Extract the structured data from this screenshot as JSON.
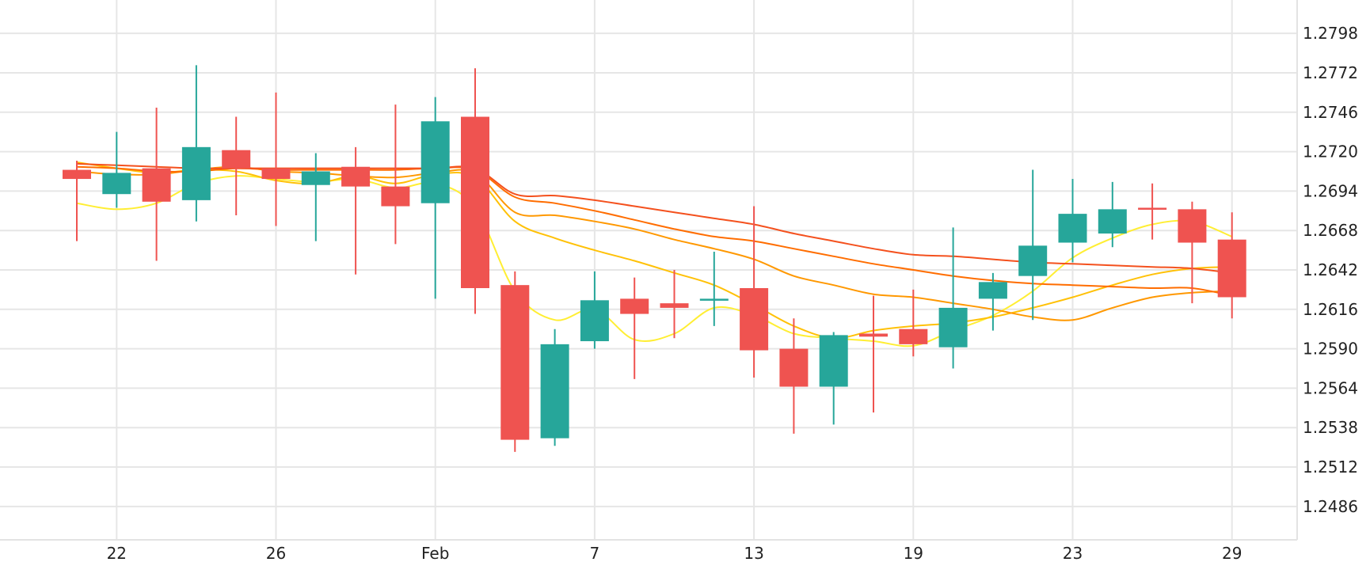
{
  "chart_data": {
    "type": "candlestick",
    "title": "",
    "xlabel": "",
    "ylabel": "",
    "ylim": [
      1.2464,
      1.282
    ],
    "y_ticks": [
      "1.2798",
      "1.2772",
      "1.2746",
      "1.2720",
      "1.2694",
      "1.2668",
      "1.2642",
      "1.2616",
      "1.2590",
      "1.2564",
      "1.2538",
      "1.2512",
      "1.2486"
    ],
    "x_ticks": [
      {
        "label": "22",
        "index": 1
      },
      {
        "label": "26",
        "index": 5
      },
      {
        "label": "Feb",
        "index": 9
      },
      {
        "label": "7",
        "index": 13
      },
      {
        "label": "13",
        "index": 17
      },
      {
        "label": "19",
        "index": 21
      },
      {
        "label": "23",
        "index": 25
      },
      {
        "label": "29",
        "index": 29
      }
    ],
    "grid": true,
    "colors": {
      "up": "#26a69a",
      "down": "#ef5350",
      "ma_yellow": "#ffee33",
      "ma_gold": "#ffc107",
      "ma_orange": "#ff9800",
      "ma_deep_orange": "#ff6d00",
      "ma_red": "#f4511e"
    },
    "candles": [
      {
        "o": 1.2708,
        "h": 1.2714,
        "l": 1.2661,
        "c": 1.2702
      },
      {
        "o": 1.2692,
        "h": 1.2733,
        "l": 1.2683,
        "c": 1.2706
      },
      {
        "o": 1.2709,
        "h": 1.2749,
        "l": 1.2648,
        "c": 1.2687
      },
      {
        "o": 1.2688,
        "h": 1.2777,
        "l": 1.2674,
        "c": 1.2723
      },
      {
        "o": 1.2721,
        "h": 1.2743,
        "l": 1.2678,
        "c": 1.2709
      },
      {
        "o": 1.2709,
        "h": 1.2759,
        "l": 1.2671,
        "c": 1.2702
      },
      {
        "o": 1.2698,
        "h": 1.2719,
        "l": 1.2661,
        "c": 1.2707
      },
      {
        "o": 1.271,
        "h": 1.2723,
        "l": 1.2639,
        "c": 1.2697
      },
      {
        "o": 1.2697,
        "h": 1.2751,
        "l": 1.2659,
        "c": 1.2684
      },
      {
        "o": 1.2686,
        "h": 1.2756,
        "l": 1.2623,
        "c": 1.274
      },
      {
        "o": 1.2743,
        "h": 1.2775,
        "l": 1.2613,
        "c": 1.263
      },
      {
        "o": 1.2632,
        "h": 1.2641,
        "l": 1.2522,
        "c": 1.253
      },
      {
        "o": 1.2531,
        "h": 1.2603,
        "l": 1.2526,
        "c": 1.2593
      },
      {
        "o": 1.2595,
        "h": 1.2641,
        "l": 1.259,
        "c": 1.2622
      },
      {
        "o": 1.2623,
        "h": 1.2637,
        "l": 1.257,
        "c": 1.2613
      },
      {
        "o": 1.262,
        "h": 1.2642,
        "l": 1.2597,
        "c": 1.2617
      },
      {
        "o": 1.2622,
        "h": 1.2654,
        "l": 1.2605,
        "c": 1.2623
      },
      {
        "o": 1.263,
        "h": 1.2684,
        "l": 1.2571,
        "c": 1.2589
      },
      {
        "o": 1.259,
        "h": 1.261,
        "l": 1.2534,
        "c": 1.2565
      },
      {
        "o": 1.2565,
        "h": 1.2601,
        "l": 1.254,
        "c": 1.2599
      },
      {
        "o": 1.26,
        "h": 1.2625,
        "l": 1.2548,
        "c": 1.2598
      },
      {
        "o": 1.2603,
        "h": 1.2629,
        "l": 1.2585,
        "c": 1.2593
      },
      {
        "o": 1.2591,
        "h": 1.267,
        "l": 1.2577,
        "c": 1.2617
      },
      {
        "o": 1.2623,
        "h": 1.264,
        "l": 1.2602,
        "c": 1.2634
      },
      {
        "o": 1.2638,
        "h": 1.2708,
        "l": 1.2609,
        "c": 1.2658
      },
      {
        "o": 1.266,
        "h": 1.2702,
        "l": 1.2647,
        "c": 1.2679
      },
      {
        "o": 1.2666,
        "h": 1.27,
        "l": 1.2657,
        "c": 1.2682
      },
      {
        "o": 1.2683,
        "h": 1.2699,
        "l": 1.2662,
        "c": 1.2682
      },
      {
        "o": 1.2682,
        "h": 1.2687,
        "l": 1.262,
        "c": 1.266
      },
      {
        "o": 1.2662,
        "h": 1.268,
        "l": 1.261,
        "c": 1.2624
      }
    ],
    "moving_averages": [
      {
        "color": "#ffee33",
        "values": [
          1.2686,
          1.2682,
          1.2686,
          1.2699,
          1.2704,
          1.2702,
          1.27,
          1.2702,
          1.2696,
          1.2699,
          1.2683,
          1.2628,
          1.2609,
          1.2616,
          1.2596,
          1.26,
          1.2617,
          1.2612,
          1.26,
          1.2597,
          1.2595,
          1.2592,
          1.2602,
          1.2612,
          1.2628,
          1.265,
          1.2663,
          1.2672,
          1.2674,
          1.2664
        ]
      },
      {
        "color": "#ffc107",
        "values": [
          1.2713,
          1.2709,
          1.2706,
          1.2708,
          1.2707,
          1.2701,
          1.2699,
          1.2704,
          1.2699,
          1.2705,
          1.2703,
          1.2674,
          1.2663,
          1.2655,
          1.2648,
          1.264,
          1.2632,
          1.2619,
          1.2605,
          1.2597,
          1.2602,
          1.2605,
          1.2607,
          1.2611,
          1.2617,
          1.2624,
          1.2632,
          1.2639,
          1.2643,
          1.2644
        ]
      },
      {
        "color": "#ff9800",
        "values": [
          1.2707,
          1.2705,
          1.2705,
          1.2708,
          1.271,
          1.2707,
          1.2706,
          1.2704,
          1.2703,
          1.2706,
          1.2706,
          1.268,
          1.2678,
          1.2674,
          1.2669,
          1.2662,
          1.2656,
          1.2649,
          1.2638,
          1.2632,
          1.2626,
          1.2624,
          1.262,
          1.2616,
          1.2611,
          1.2609,
          1.2617,
          1.2624,
          1.2627,
          1.2628
        ]
      },
      {
        "color": "#ff6d00",
        "values": [
          1.271,
          1.2709,
          1.2707,
          1.2707,
          1.2709,
          1.2708,
          1.2708,
          1.2708,
          1.2708,
          1.2709,
          1.2708,
          1.269,
          1.2686,
          1.2681,
          1.2675,
          1.2669,
          1.2664,
          1.2661,
          1.2656,
          1.2651,
          1.2646,
          1.2642,
          1.2638,
          1.2635,
          1.2633,
          1.2632,
          1.2631,
          1.263,
          1.263,
          1.2625
        ]
      },
      {
        "color": "#f4511e",
        "values": [
          1.2712,
          1.2711,
          1.271,
          1.2709,
          1.2709,
          1.2709,
          1.2709,
          1.2709,
          1.2709,
          1.2709,
          1.2709,
          1.2692,
          1.2691,
          1.2688,
          1.2684,
          1.268,
          1.2676,
          1.2672,
          1.2666,
          1.2661,
          1.2656,
          1.2652,
          1.2651,
          1.2649,
          1.2647,
          1.2646,
          1.2645,
          1.2644,
          1.2643,
          1.264
        ]
      }
    ]
  }
}
